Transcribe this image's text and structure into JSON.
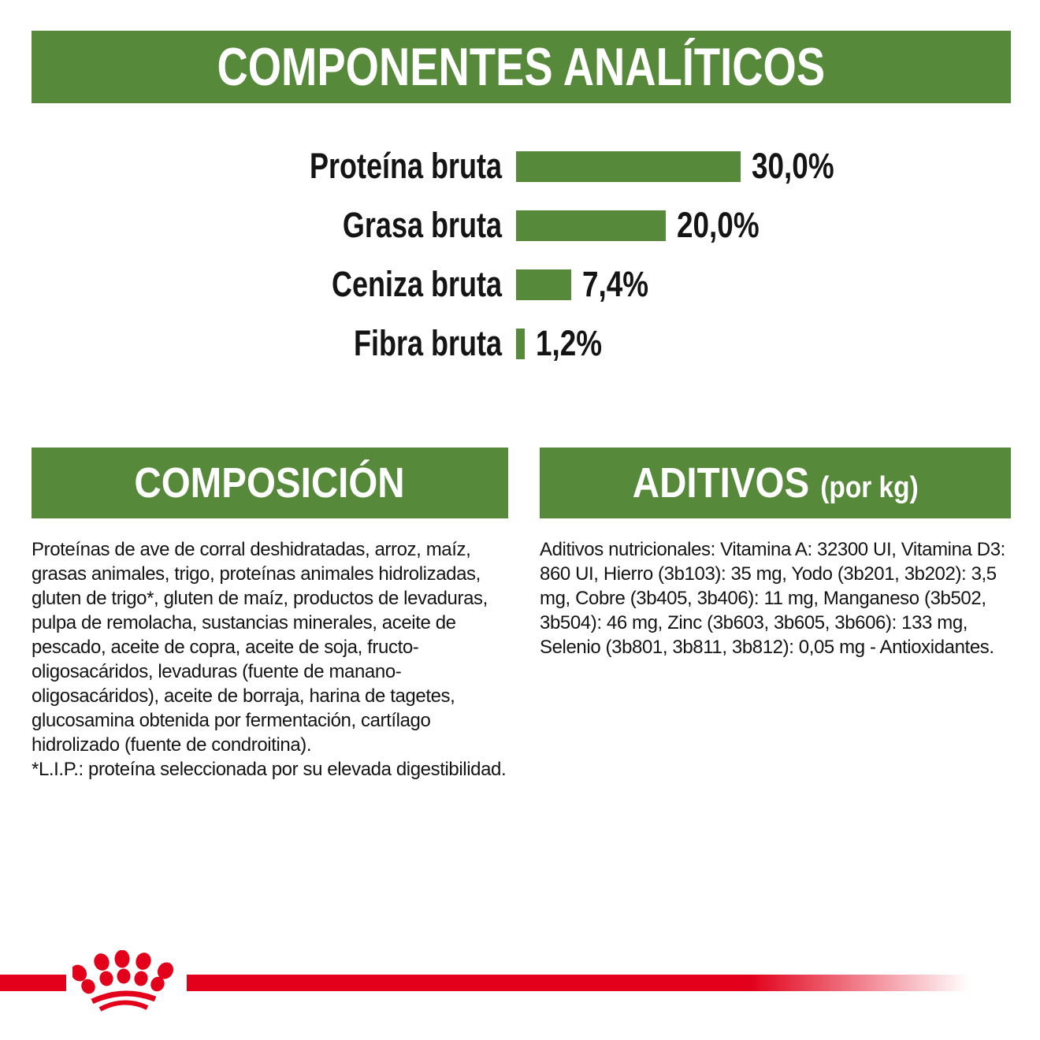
{
  "colors": {
    "green": "#57893b",
    "red": "#e2001a",
    "text": "#141414",
    "background": "#ffffff"
  },
  "chart_data": {
    "type": "bar",
    "orientation": "horizontal",
    "title": "COMPONENTES ANALÍTICOS",
    "categories": [
      "Proteína bruta",
      "Grasa bruta",
      "Ceniza bruta",
      "Fibra bruta"
    ],
    "values": [
      30.0,
      20.0,
      7.4,
      1.2
    ],
    "value_labels": [
      "30,0%",
      "20,0%",
      "7,4%",
      "1,2%"
    ],
    "unit": "%",
    "xlim": [
      0,
      31
    ],
    "bar_color": "#57893b",
    "grid": false,
    "legend": false
  },
  "sections": {
    "composition": {
      "title": "COMPOSICIÓN",
      "body": "Proteínas de ave de corral deshidratadas, arroz, maíz, grasas animales, trigo, proteínas animales hidrolizadas, gluten de trigo*, gluten de maíz, productos de levaduras, pulpa de remolacha, sustancias minerales, aceite de pescado, aceite de copra, aceite de soja, fructo-oligosacáridos, levaduras (fuente de manano-oligosacáridos), aceite de borraja, harina de tagetes, glucosamina obtenida por fermentación, cartílago hidrolizado (fuente de condroitina).",
      "footnote": "*L.I.P.: proteína seleccionada por su elevada digestibilidad."
    },
    "additives": {
      "title": "ADITIVOS",
      "title_suffix": "(por kg)",
      "body": "Aditivos nutricionales: Vitamina A: 32300 UI, Vitamina D3: 860 UI, Hierro (3b103): 35 mg, Yodo (3b201, 3b202): 3,5 mg, Cobre (3b405, 3b406): 11 mg, Manganeso (3b502, 3b504): 46 mg, Zinc (3b603, 3b605, 3b606): 133 mg, Selenio (3b801, 3b811, 3b812): 0,05 mg - Antioxidantes."
    }
  },
  "footer": {
    "logo": "royal-canin-crown-paw-logo",
    "stripe_color": "#e2001a"
  }
}
